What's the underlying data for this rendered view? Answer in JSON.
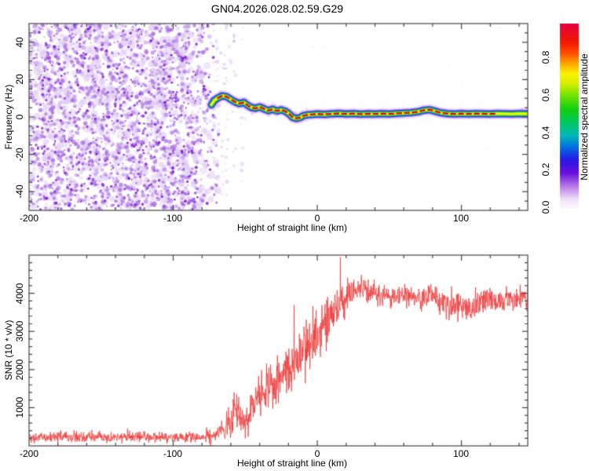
{
  "title": "GN04.2026.028.02.59.G29",
  "top_panel": {
    "ylabel": "Frequency (Hz)",
    "xlabel": "Height of straight line (km)",
    "x_ticks": [
      "-200",
      "-100",
      "0",
      "100"
    ],
    "y_ticks": [
      "40",
      "20",
      "0",
      "-20",
      "-40"
    ]
  },
  "bottom_panel": {
    "ylabel": "SNR (10 * v/v)",
    "xlabel": "Height of straight line (km)",
    "x_ticks": [
      "-200",
      "-100",
      "0",
      "100"
    ],
    "y_ticks": [
      "1000",
      "2000",
      "3000",
      "4000"
    ]
  },
  "colorbar": {
    "label": "Normalized spectral amplitude",
    "ticks": [
      "0.0",
      "0.2",
      "0.4",
      "0.6",
      "0.8"
    ]
  },
  "chart_data": [
    {
      "type": "heatmap",
      "title": "GN04.2026.028.02.59.G29",
      "xlabel": "Height of straight line (km)",
      "ylabel": "Frequency (Hz)",
      "xlim": [
        -200,
        146
      ],
      "ylim": [
        -50,
        50
      ],
      "x_major_ticks": [
        -200,
        -100,
        0,
        100
      ],
      "x_minor_step": 20,
      "y_major_ticks": [
        -40,
        -20,
        0,
        20,
        40
      ],
      "y_minor_step": 5,
      "grid": false,
      "noise_region_km": [
        -200,
        -72
      ],
      "noise_palette": [
        "#dcc6f4",
        "#a76ae2",
        "#7d1fd2"
      ],
      "signal_track": {
        "description": "coherent spectral ridge; red core = normalized amplitude near 1.0",
        "points_km_hz": [
          [
            -73.5,
            6.5
          ],
          [
            -71.5,
            8.8
          ],
          [
            -69,
            10.2
          ],
          [
            -66,
            11.3
          ],
          [
            -63,
            10.9
          ],
          [
            -60,
            9.4
          ],
          [
            -57,
            8.0
          ],
          [
            -54,
            7.2
          ],
          [
            -51,
            7.8
          ],
          [
            -48.5,
            6.3
          ],
          [
            -46,
            5.2
          ],
          [
            -43,
            4.6
          ],
          [
            -40,
            5.4
          ],
          [
            -37,
            4.3
          ],
          [
            -34,
            3.4
          ],
          [
            -31,
            4.1
          ],
          [
            -28,
            3.2
          ],
          [
            -25,
            3.8
          ],
          [
            -22,
            3.0
          ],
          [
            -19.5,
            1.6
          ],
          [
            -17,
            -0.3
          ],
          [
            -14.5,
            -0.8
          ],
          [
            -12,
            -0.4
          ],
          [
            -10,
            0.6
          ],
          [
            -7,
            1.1
          ],
          [
            -4,
            1.3
          ],
          [
            0,
            1.6
          ],
          [
            5,
            1.4
          ],
          [
            10,
            1.7
          ],
          [
            15,
            1.9
          ],
          [
            20,
            1.6
          ],
          [
            25,
            1.8
          ],
          [
            30,
            1.5
          ],
          [
            35,
            1.7
          ],
          [
            40,
            1.6
          ],
          [
            45,
            1.8
          ],
          [
            50,
            1.6
          ],
          [
            55,
            1.9
          ],
          [
            60,
            2.1
          ],
          [
            65,
            2.3
          ],
          [
            70,
            2.8
          ],
          [
            74,
            3.6
          ],
          [
            78,
            3.9
          ],
          [
            82,
            3.0
          ],
          [
            86,
            2.2
          ],
          [
            90,
            1.8
          ],
          [
            95,
            1.6
          ],
          [
            100,
            1.8
          ],
          [
            105,
            1.6
          ],
          [
            110,
            1.8
          ],
          [
            115,
            1.7
          ],
          [
            120,
            1.6
          ],
          [
            125,
            1.8
          ],
          [
            130,
            1.7
          ],
          [
            135,
            1.6
          ],
          [
            140,
            1.8
          ],
          [
            146,
            1.7
          ]
        ],
        "halo_colors": [
          "#c9a4f0",
          "#8040e8",
          "#2a1fd8",
          "#00b4d8",
          "#00cc22",
          "#aaee00",
          "#f4f400"
        ],
        "core_color": "#e60026",
        "core_km_range": [
          -71,
          126
        ]
      },
      "colorbar": {
        "label": "Normalized spectral amplitude",
        "ticks": [
          0.0,
          0.2,
          0.4,
          0.6,
          0.8
        ],
        "range": [
          0.0,
          1.0
        ],
        "gradient": [
          [
            0.0,
            "#ffffff"
          ],
          [
            0.06,
            "#efe0fa"
          ],
          [
            0.13,
            "#b878e8"
          ],
          [
            0.2,
            "#6a10dd"
          ],
          [
            0.27,
            "#2818e8"
          ],
          [
            0.34,
            "#0070e0"
          ],
          [
            0.4,
            "#00b8b8"
          ],
          [
            0.47,
            "#00c860"
          ],
          [
            0.54,
            "#10d010"
          ],
          [
            0.62,
            "#78e400"
          ],
          [
            0.68,
            "#d8ee00"
          ],
          [
            0.73,
            "#fcf400"
          ],
          [
            0.79,
            "#ffa000"
          ],
          [
            0.84,
            "#ff5000"
          ],
          [
            0.9,
            "#f41800"
          ],
          [
            1.0,
            "#e20040"
          ]
        ]
      }
    },
    {
      "type": "line",
      "xlabel": "Height of straight line (km)",
      "ylabel": "SNR (10 * v/v)",
      "xlim": [
        -200,
        146
      ],
      "ylim": [
        0,
        5000
      ],
      "x_major_ticks": [
        -200,
        -100,
        0,
        100
      ],
      "x_minor_step": 20,
      "y_major_ticks": [
        1000,
        2000,
        3000,
        4000
      ],
      "y_minor_step": 200,
      "grid": false,
      "line_color": "#ee3333",
      "envelope_km_mean_amp": [
        [
          -200,
          230,
          200
        ],
        [
          -80,
          230,
          200
        ],
        [
          -72,
          260,
          240
        ],
        [
          -66,
          430,
          400
        ],
        [
          -60,
          750,
          650
        ],
        [
          -56,
          950,
          900
        ],
        [
          -52,
          700,
          500
        ],
        [
          -48,
          850,
          650
        ],
        [
          -44,
          1150,
          800
        ],
        [
          -40,
          1300,
          820
        ],
        [
          -36,
          1450,
          850
        ],
        [
          -32,
          1550,
          900
        ],
        [
          -28,
          1650,
          900
        ],
        [
          -24,
          1850,
          950
        ],
        [
          -20,
          1950,
          950
        ],
        [
          -16,
          2150,
          1000
        ],
        [
          -12,
          2350,
          1000
        ],
        [
          -8,
          2550,
          1000
        ],
        [
          -4,
          2750,
          1000
        ],
        [
          0,
          2950,
          1000
        ],
        [
          4,
          3150,
          950
        ],
        [
          8,
          3350,
          900
        ],
        [
          12,
          3550,
          880
        ],
        [
          16,
          3700,
          900
        ],
        [
          20,
          3900,
          620
        ],
        [
          25,
          4050,
          500
        ],
        [
          30,
          4100,
          460
        ],
        [
          35,
          4050,
          430
        ],
        [
          40,
          4000,
          420
        ],
        [
          50,
          3950,
          420
        ],
        [
          60,
          3900,
          450
        ],
        [
          70,
          3850,
          480
        ],
        [
          78,
          3950,
          430
        ],
        [
          85,
          3800,
          450
        ],
        [
          92,
          3600,
          460
        ],
        [
          100,
          3700,
          430
        ],
        [
          106,
          3550,
          460
        ],
        [
          112,
          3800,
          410
        ],
        [
          118,
          3900,
          390
        ],
        [
          124,
          3750,
          430
        ],
        [
          130,
          3900,
          390
        ],
        [
          138,
          3850,
          410
        ],
        [
          146,
          3800,
          430
        ]
      ],
      "peak_spike": {
        "km": 16,
        "value": 4950
      }
    }
  ],
  "frame_color": "#444444"
}
